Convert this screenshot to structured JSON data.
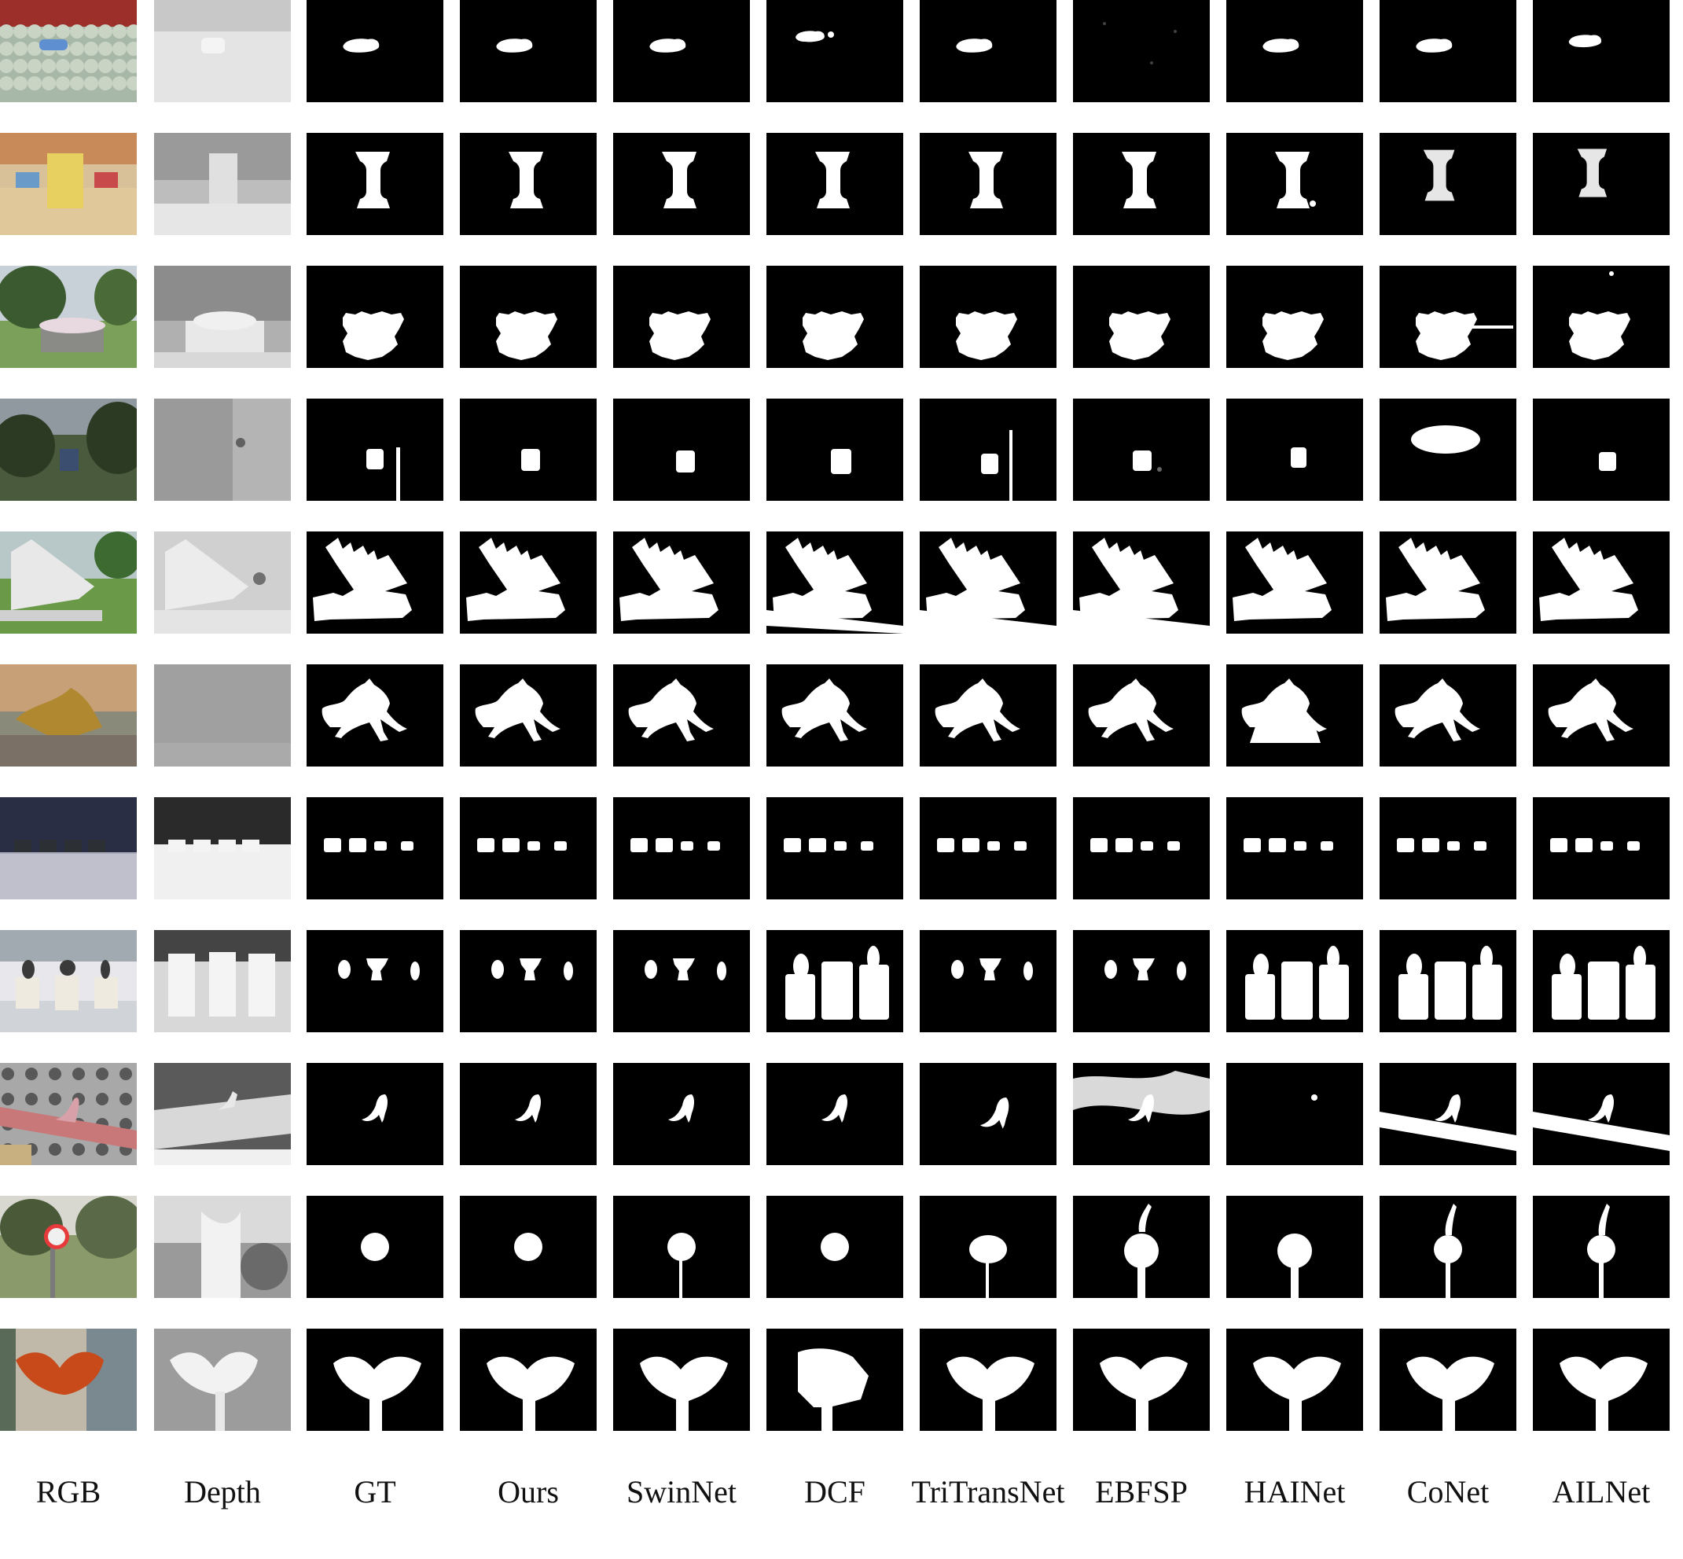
{
  "figure": {
    "column_labels": [
      "RGB",
      "Depth",
      "GT",
      "Ours",
      "SwinNet",
      "DCF",
      "TriTransNet",
      "EBFSP",
      "HAINet",
      "CoNet",
      "AILNet"
    ],
    "row_count": 11,
    "colors": {
      "mask_background": "#000000",
      "mask_foreground": "#ffffff",
      "page_background": "#ffffff"
    }
  },
  "rows": [
    {
      "scene": "water-bottles"
    },
    {
      "scene": "i-shaped-object-on-boxes"
    },
    {
      "scene": "flower-planter"
    },
    {
      "scene": "sign-in-trees"
    },
    {
      "scene": "slanted-monument"
    },
    {
      "scene": "horse-statue"
    },
    {
      "scene": "four-vessels"
    },
    {
      "scene": "museum-vases"
    },
    {
      "scene": "high-heel-shoe"
    },
    {
      "scene": "no-horn-sign"
    },
    {
      "scene": "red-heart-sculpture"
    }
  ]
}
